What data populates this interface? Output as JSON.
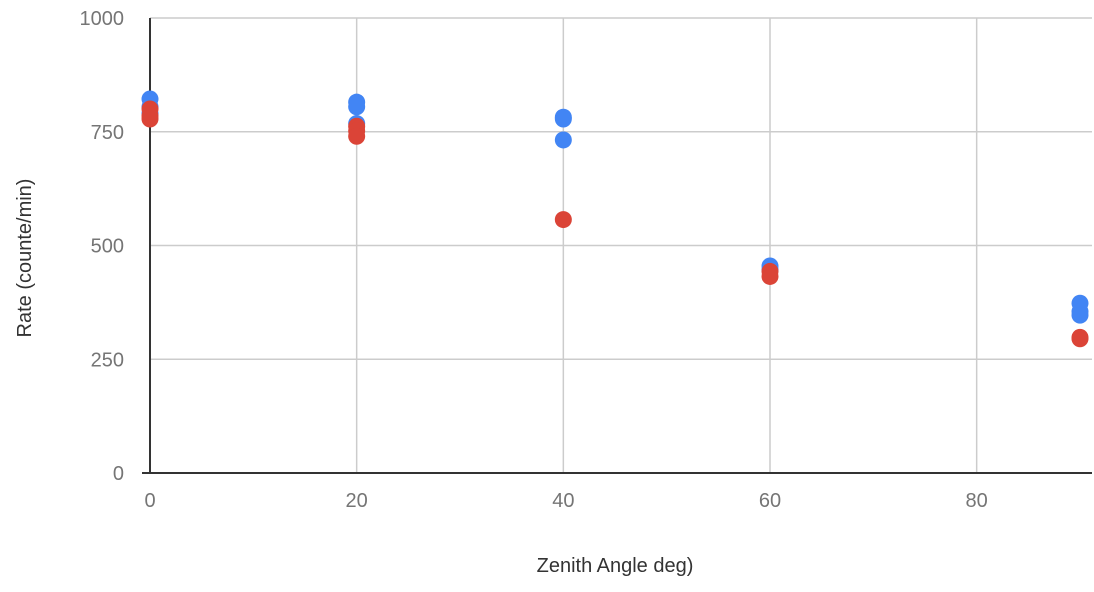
{
  "chart_data": {
    "type": "scatter",
    "title": "",
    "xlabel": "Zenith Angle deg)",
    "ylabel": "Rate (counte/min)",
    "xlim": [
      0,
      90
    ],
    "ylim": [
      0,
      1000
    ],
    "x_ticks": [
      0,
      20,
      40,
      60,
      80
    ],
    "y_ticks": [
      0,
      250,
      500,
      750,
      1000
    ],
    "x_tick_labels": [
      "0",
      "20",
      "40",
      "60",
      "80"
    ],
    "y_tick_labels": [
      "0",
      "250",
      "500",
      "750",
      "1000"
    ],
    "grid": true,
    "legend": "none",
    "series": [
      {
        "color": "#4285f4",
        "points": [
          {
            "x": 0,
            "y": 822
          },
          {
            "x": 0,
            "y": 805
          },
          {
            "x": 0,
            "y": 790
          },
          {
            "x": 20,
            "y": 815
          },
          {
            "x": 20,
            "y": 805
          },
          {
            "x": 20,
            "y": 768
          },
          {
            "x": 40,
            "y": 782
          },
          {
            "x": 40,
            "y": 778
          },
          {
            "x": 40,
            "y": 732
          },
          {
            "x": 60,
            "y": 455
          },
          {
            "x": 60,
            "y": 447
          },
          {
            "x": 90,
            "y": 373
          },
          {
            "x": 90,
            "y": 355
          },
          {
            "x": 90,
            "y": 347
          }
        ]
      },
      {
        "color": "#db4437",
        "points": [
          {
            "x": 0,
            "y": 800
          },
          {
            "x": 0,
            "y": 785
          },
          {
            "x": 0,
            "y": 778
          },
          {
            "x": 20,
            "y": 762
          },
          {
            "x": 20,
            "y": 752
          },
          {
            "x": 20,
            "y": 740
          },
          {
            "x": 40,
            "y": 557
          },
          {
            "x": 60,
            "y": 443
          },
          {
            "x": 60,
            "y": 432
          },
          {
            "x": 90,
            "y": 298
          },
          {
            "x": 90,
            "y": 295
          }
        ]
      }
    ]
  }
}
